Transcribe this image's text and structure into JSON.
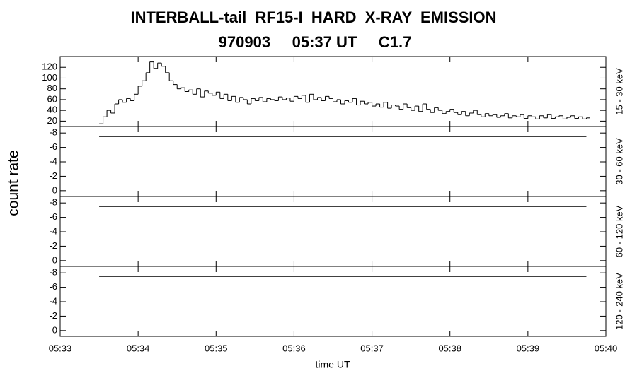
{
  "chart_data": [
    {
      "type": "step",
      "title": "INTERBALL-tail  RF15-I  HARD  X-RAY  EMISSION",
      "subtitle": "970903     05:37 UT     C1.7",
      "ylabel": "count rate",
      "side_label": "15 - 30 keV",
      "x": [
        333.5,
        333.55,
        333.6,
        333.65,
        333.7,
        333.75,
        333.8,
        333.85,
        333.9,
        333.95,
        334.0,
        334.05,
        334.1,
        334.15,
        334.2,
        334.25,
        334.3,
        334.35,
        334.4,
        334.45,
        334.5,
        334.55,
        334.6,
        334.65,
        334.7,
        334.75,
        334.8,
        334.85,
        334.9,
        334.95,
        335.0,
        335.05,
        335.1,
        335.15,
        335.2,
        335.25,
        335.3,
        335.35,
        335.4,
        335.45,
        335.5,
        335.55,
        335.6,
        335.65,
        335.7,
        335.75,
        335.8,
        335.85,
        335.9,
        335.95,
        336.0,
        336.05,
        336.1,
        336.15,
        336.2,
        336.25,
        336.3,
        336.35,
        336.4,
        336.45,
        336.5,
        336.55,
        336.6,
        336.65,
        336.7,
        336.75,
        336.8,
        336.85,
        336.9,
        336.95,
        337.0,
        337.05,
        337.1,
        337.15,
        337.2,
        337.25,
        337.3,
        337.35,
        337.4,
        337.45,
        337.5,
        337.55,
        337.6,
        337.65,
        337.7,
        337.75,
        337.8,
        337.85,
        337.9,
        337.95,
        338.0,
        338.05,
        338.1,
        338.15,
        338.2,
        338.25,
        338.3,
        338.35,
        338.4,
        338.45,
        338.5,
        338.55,
        338.6,
        338.65,
        338.7,
        338.75,
        338.8,
        338.85,
        338.9,
        338.95,
        339.0,
        339.05,
        339.1,
        339.15,
        339.2,
        339.25,
        339.3,
        339.35,
        339.4,
        339.45,
        339.5,
        339.55,
        339.6,
        339.65,
        339.7,
        339.75
      ],
      "values": [
        15,
        28,
        40,
        35,
        52,
        60,
        55,
        62,
        58,
        70,
        85,
        95,
        110,
        130,
        118,
        128,
        122,
        110,
        95,
        88,
        80,
        82,
        75,
        78,
        70,
        80,
        65,
        76,
        72,
        68,
        74,
        62,
        70,
        58,
        66,
        55,
        64,
        60,
        52,
        62,
        58,
        64,
        56,
        62,
        60,
        58,
        65,
        60,
        63,
        57,
        66,
        62,
        68,
        55,
        70,
        60,
        64,
        58,
        66,
        62,
        56,
        60,
        52,
        58,
        55,
        62,
        50,
        57,
        52,
        55,
        48,
        52,
        46,
        55,
        44,
        50,
        48,
        42,
        52,
        45,
        40,
        48,
        38,
        52,
        42,
        36,
        45,
        40,
        34,
        38,
        42,
        36,
        32,
        38,
        30,
        35,
        40,
        32,
        28,
        34,
        30,
        32,
        27,
        30,
        34,
        26,
        30,
        28,
        32,
        25,
        30,
        28,
        24,
        30,
        26,
        32,
        25,
        28,
        30,
        24,
        27,
        30,
        25,
        28,
        24,
        26
      ],
      "ylim": [
        10,
        140
      ],
      "yticks": [
        20,
        40,
        60,
        80,
        100,
        120
      ],
      "color": "#000000"
    },
    {
      "type": "step",
      "side_label": "30 - 60 keV",
      "x": [
        333.5,
        339.75
      ],
      "values": [
        -7.5,
        -7.5
      ],
      "ylim": [
        0.8,
        -8.9
      ],
      "yticks": [
        0,
        -2,
        -4,
        -6,
        -8
      ],
      "color": "#000000"
    },
    {
      "type": "step",
      "side_label": "60 - 120 keV",
      "x": [
        333.5,
        339.75
      ],
      "values": [
        -7.5,
        -7.5
      ],
      "ylim": [
        0.8,
        -8.9
      ],
      "yticks": [
        0,
        -2,
        -4,
        -6,
        -8
      ],
      "color": "#000000"
    },
    {
      "type": "step",
      "side_label": "120 - 240 keV",
      "x": [
        333.5,
        339.75
      ],
      "values": [
        -7.5,
        -7.5
      ],
      "ylim": [
        0.8,
        -8.9
      ],
      "yticks": [
        0,
        -2,
        -4,
        -6,
        -8
      ],
      "color": "#000000",
      "xlabel": "time UT",
      "xlim": [
        333,
        340
      ],
      "xticks": [
        {
          "value": 333,
          "label": "05:33"
        },
        {
          "value": 334,
          "label": "05:34"
        },
        {
          "value": 335,
          "label": "05:35"
        },
        {
          "value": 336,
          "label": "05:36"
        },
        {
          "value": 337,
          "label": "05:37"
        },
        {
          "value": 338,
          "label": "05:38"
        },
        {
          "value": 339,
          "label": "05:39"
        },
        {
          "value": 340,
          "label": "05:40"
        }
      ]
    }
  ]
}
